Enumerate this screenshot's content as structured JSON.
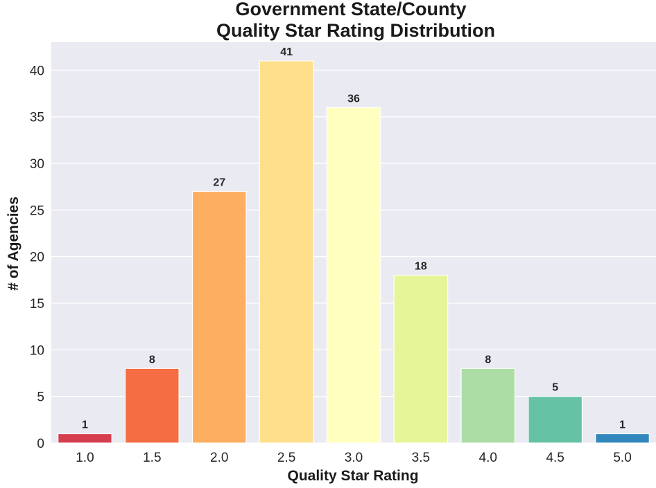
{
  "chart_data": {
    "type": "bar",
    "title_lines": [
      "Government State/County",
      "Quality Star Rating Distribution"
    ],
    "xlabel": "Quality Star Rating",
    "ylabel": "# of Agencies",
    "categories": [
      "1.0",
      "1.5",
      "2.0",
      "2.5",
      "3.0",
      "3.5",
      "4.0",
      "4.5",
      "5.0"
    ],
    "values": [
      1,
      8,
      27,
      41,
      36,
      18,
      8,
      5,
      1
    ],
    "colors": [
      "#d53e4f",
      "#f46d43",
      "#fdae61",
      "#fee08b",
      "#ffffbf",
      "#e6f598",
      "#abdda4",
      "#66c2a5",
      "#3288bd"
    ],
    "ylim": [
      0,
      43
    ],
    "yticks": [
      0,
      5,
      10,
      15,
      20,
      25,
      30,
      35,
      40
    ],
    "grid": true,
    "background": "#eaeaf2"
  }
}
